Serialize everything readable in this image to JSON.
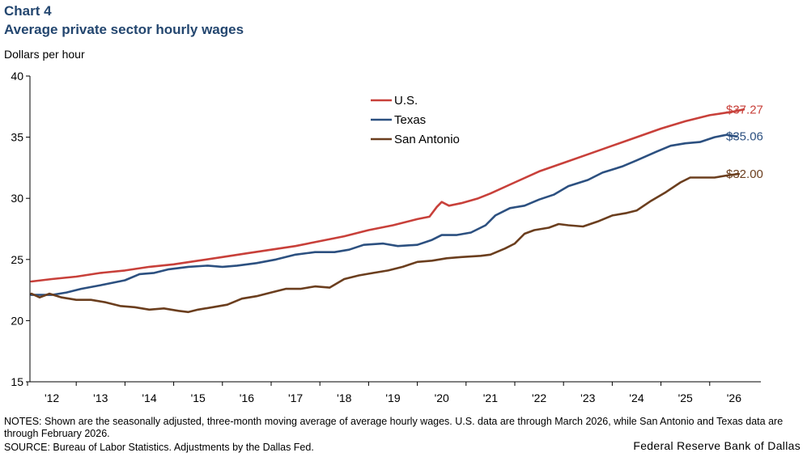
{
  "header": {
    "chart_number": "Chart 4",
    "title": "Average private sector hourly wages",
    "units": "Dollars per hour"
  },
  "footer": {
    "notes": "NOTES: Shown are the seasonally adjusted, three-month moving average of average hourly wages. U.S. data are through March 2026, while San Antonio  and Texas data are through February 2026.",
    "source": "SOURCE: Bureau of Labor Statistics. Adjustments by the Dallas Fed.",
    "credit": "Federal Reserve Bank of Dallas"
  },
  "chart_data": {
    "type": "line",
    "title": "Average private sector hourly wages",
    "ylabel": "Dollars per hour",
    "xlabel": "",
    "ylim": [
      15,
      40
    ],
    "xlim": [
      2011.55,
      2026.55
    ],
    "yticks": [
      15,
      20,
      25,
      30,
      35,
      40
    ],
    "ytick_labels": [
      "15",
      "20",
      "25",
      "30",
      "35",
      "40"
    ],
    "xtick_labels": [
      "'12",
      "'13",
      "'14",
      "'15",
      "'16",
      "'17",
      "'18",
      "'19",
      "'20",
      "'21",
      "'22",
      "'23",
      "'24",
      "'25",
      "'26"
    ],
    "xtick_positions": [
      2012,
      2013,
      2014,
      2015,
      2016,
      2017,
      2018,
      2019,
      2020,
      2021,
      2022,
      2023,
      2024,
      2025,
      2026
    ],
    "legend_placement": "top-center",
    "series": [
      {
        "name": "U.S.",
        "color": "#c8403a",
        "end_label": "$37.27",
        "points": [
          [
            2011.58,
            23.2
          ],
          [
            2012.0,
            23.4
          ],
          [
            2012.5,
            23.6
          ],
          [
            2013.0,
            23.9
          ],
          [
            2013.5,
            24.1
          ],
          [
            2014.0,
            24.4
          ],
          [
            2014.5,
            24.6
          ],
          [
            2015.0,
            24.9
          ],
          [
            2015.5,
            25.2
          ],
          [
            2016.0,
            25.5
          ],
          [
            2016.5,
            25.8
          ],
          [
            2017.0,
            26.1
          ],
          [
            2017.5,
            26.5
          ],
          [
            2018.0,
            26.9
          ],
          [
            2018.5,
            27.4
          ],
          [
            2019.0,
            27.8
          ],
          [
            2019.5,
            28.3
          ],
          [
            2019.75,
            28.5
          ],
          [
            2019.9,
            29.3
          ],
          [
            2020.0,
            29.7
          ],
          [
            2020.15,
            29.4
          ],
          [
            2020.4,
            29.6
          ],
          [
            2020.75,
            30.0
          ],
          [
            2021.0,
            30.4
          ],
          [
            2021.5,
            31.3
          ],
          [
            2022.0,
            32.2
          ],
          [
            2022.5,
            32.9
          ],
          [
            2023.0,
            33.6
          ],
          [
            2023.5,
            34.3
          ],
          [
            2024.0,
            35.0
          ],
          [
            2024.5,
            35.7
          ],
          [
            2025.0,
            36.3
          ],
          [
            2025.5,
            36.8
          ],
          [
            2026.0,
            37.1
          ],
          [
            2026.2,
            37.27
          ]
        ]
      },
      {
        "name": "Texas",
        "color": "#2c5080",
        "end_label": "$35.06",
        "points": [
          [
            2011.58,
            22.1
          ],
          [
            2012.0,
            22.1
          ],
          [
            2012.3,
            22.3
          ],
          [
            2012.6,
            22.6
          ],
          [
            2013.0,
            22.9
          ],
          [
            2013.5,
            23.3
          ],
          [
            2013.8,
            23.8
          ],
          [
            2014.1,
            23.9
          ],
          [
            2014.4,
            24.2
          ],
          [
            2014.8,
            24.4
          ],
          [
            2015.2,
            24.5
          ],
          [
            2015.5,
            24.4
          ],
          [
            2015.8,
            24.5
          ],
          [
            2016.2,
            24.7
          ],
          [
            2016.6,
            25.0
          ],
          [
            2017.0,
            25.4
          ],
          [
            2017.4,
            25.6
          ],
          [
            2017.8,
            25.6
          ],
          [
            2018.1,
            25.8
          ],
          [
            2018.4,
            26.2
          ],
          [
            2018.8,
            26.3
          ],
          [
            2019.1,
            26.1
          ],
          [
            2019.5,
            26.2
          ],
          [
            2019.8,
            26.6
          ],
          [
            2020.0,
            27.0
          ],
          [
            2020.3,
            27.0
          ],
          [
            2020.6,
            27.2
          ],
          [
            2020.9,
            27.8
          ],
          [
            2021.1,
            28.6
          ],
          [
            2021.4,
            29.2
          ],
          [
            2021.7,
            29.4
          ],
          [
            2022.0,
            29.9
          ],
          [
            2022.3,
            30.3
          ],
          [
            2022.6,
            31.0
          ],
          [
            2023.0,
            31.5
          ],
          [
            2023.3,
            32.1
          ],
          [
            2023.7,
            32.6
          ],
          [
            2024.0,
            33.1
          ],
          [
            2024.4,
            33.8
          ],
          [
            2024.7,
            34.3
          ],
          [
            2025.0,
            34.5
          ],
          [
            2025.3,
            34.6
          ],
          [
            2025.6,
            35.0
          ],
          [
            2025.85,
            35.2
          ],
          [
            2026.05,
            35.06
          ]
        ]
      },
      {
        "name": "San Antonio",
        "color": "#6b3e1e",
        "end_label": "$32.00",
        "points": [
          [
            2011.58,
            22.2
          ],
          [
            2011.75,
            21.9
          ],
          [
            2011.95,
            22.2
          ],
          [
            2012.2,
            21.9
          ],
          [
            2012.5,
            21.7
          ],
          [
            2012.8,
            21.7
          ],
          [
            2013.1,
            21.5
          ],
          [
            2013.4,
            21.2
          ],
          [
            2013.7,
            21.1
          ],
          [
            2014.0,
            20.9
          ],
          [
            2014.3,
            21.0
          ],
          [
            2014.6,
            20.8
          ],
          [
            2014.8,
            20.7
          ],
          [
            2015.0,
            20.9
          ],
          [
            2015.3,
            21.1
          ],
          [
            2015.6,
            21.3
          ],
          [
            2015.9,
            21.8
          ],
          [
            2016.2,
            22.0
          ],
          [
            2016.5,
            22.3
          ],
          [
            2016.8,
            22.6
          ],
          [
            2017.1,
            22.6
          ],
          [
            2017.4,
            22.8
          ],
          [
            2017.7,
            22.7
          ],
          [
            2018.0,
            23.4
          ],
          [
            2018.3,
            23.7
          ],
          [
            2018.6,
            23.9
          ],
          [
            2018.9,
            24.1
          ],
          [
            2019.2,
            24.4
          ],
          [
            2019.5,
            24.8
          ],
          [
            2019.8,
            24.9
          ],
          [
            2020.1,
            25.1
          ],
          [
            2020.4,
            25.2
          ],
          [
            2020.8,
            25.3
          ],
          [
            2021.0,
            25.4
          ],
          [
            2021.3,
            25.9
          ],
          [
            2021.5,
            26.3
          ],
          [
            2021.7,
            27.1
          ],
          [
            2021.9,
            27.4
          ],
          [
            2022.2,
            27.6
          ],
          [
            2022.4,
            27.9
          ],
          [
            2022.6,
            27.8
          ],
          [
            2022.9,
            27.7
          ],
          [
            2023.2,
            28.1
          ],
          [
            2023.5,
            28.6
          ],
          [
            2023.8,
            28.8
          ],
          [
            2024.0,
            29.0
          ],
          [
            2024.3,
            29.8
          ],
          [
            2024.6,
            30.5
          ],
          [
            2024.9,
            31.3
          ],
          [
            2025.1,
            31.7
          ],
          [
            2025.3,
            31.7
          ],
          [
            2025.6,
            31.7
          ],
          [
            2025.9,
            31.9
          ],
          [
            2026.1,
            32.0
          ]
        ]
      }
    ]
  }
}
